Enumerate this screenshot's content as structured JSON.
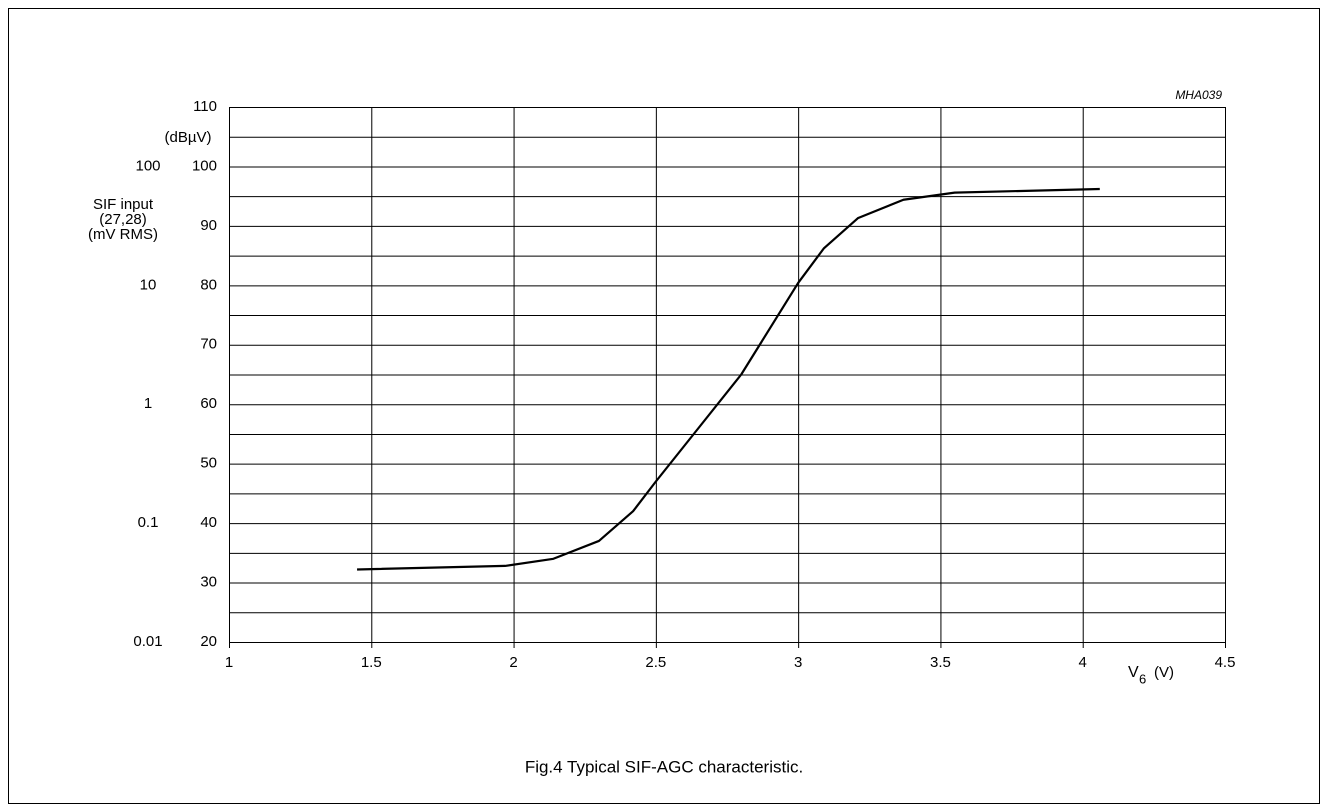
{
  "chart_data": {
    "type": "line",
    "figure_code": "MHA039",
    "caption": "Fig.4  Typical SIF-AGC characteristic.",
    "xlabel": {
      "main": "V",
      "sub": "6",
      "unit": "(V)"
    },
    "ylabel": "(dBµV)",
    "y2label": [
      "SIF input",
      "(27,28)",
      "(mV RMS)"
    ],
    "x": [
      1.45,
      1.97,
      2.14,
      2.3,
      2.42,
      2.5,
      2.65,
      2.8,
      3.0,
      3.09,
      3.21,
      3.37,
      3.55,
      4.06
    ],
    "series": [
      {
        "color": "#000000",
        "values": [
          32.2,
          32.8,
          34,
          37,
          42,
          47,
          56,
          65,
          80.4,
          86.2,
          91.3,
          94.4,
          95.6,
          96.2
        ]
      }
    ],
    "xlim": [
      1,
      4.5
    ],
    "xticks": [
      1,
      1.5,
      2,
      2.5,
      3,
      3.5,
      4,
      4.5
    ],
    "ylim": [
      20,
      110
    ],
    "yticks": [
      20,
      30,
      40,
      50,
      60,
      70,
      80,
      90,
      100,
      110
    ],
    "yminorticks": [
      25,
      35,
      45,
      55,
      65,
      75,
      85,
      95,
      105
    ],
    "y2lim": [
      0.01,
      316.228
    ],
    "y2scale": "log",
    "y2ticks": [
      0.01,
      0.1,
      1,
      10,
      100
    ],
    "grid": true
  }
}
